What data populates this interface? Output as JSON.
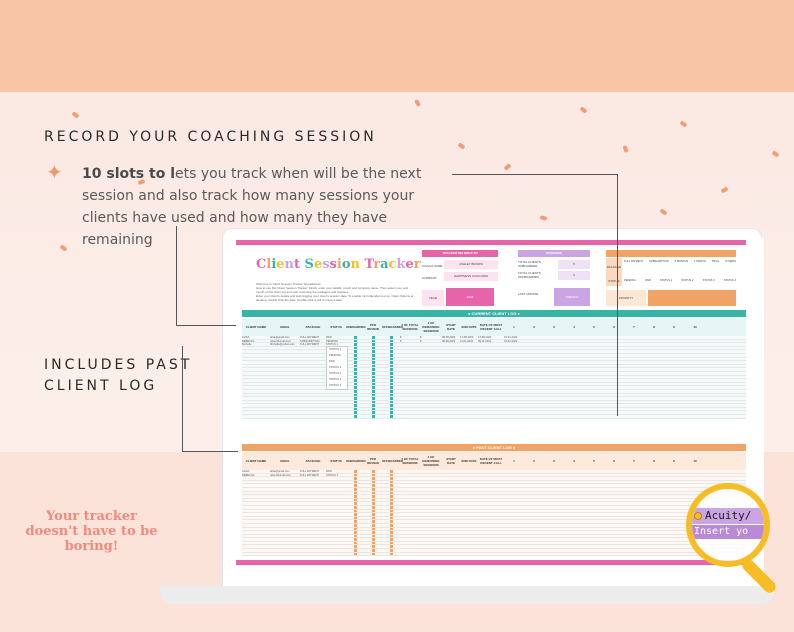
{
  "marketing": {
    "heading1": "RECORD YOUR COACHING SESSION",
    "desc_bold1": "10 slots to l",
    "desc_rest": "ets you track when will be the next session and also track how many sessions your clients have used and how many they have remaining",
    "heading2_line1": "INCLUDES PAST",
    "heading2_line2": "CLIENT LOG",
    "tagline": "Your tracker doesn't have to be boring!"
  },
  "sheet": {
    "title": "Client Session Tracker",
    "welcome": "Welcome to Client Session Tracker Spreadsheet",
    "instructions": [
      "How to use this Client Session Tracker: Firstly, enter your details, coach and company name. Then select your end month of this client log and start recording the packages and statuses.",
      "Enter your client's details and start logging your client's session date. To enable mini calendar pop up, Open Options or desktop, double click the date, Double click a cell to insert a date."
    ],
    "tracker_belongs_to_label": "TRACKER BELONGS TO",
    "coach_name_label": "COACH NAME",
    "coach_name": "ASHLEY BROWN",
    "company_label": "COMPANY",
    "company": "HAPPINESS COACHING",
    "year_label": "YEAR",
    "year": "2022",
    "overview_label": "OVERVIEW",
    "total_clients_label": "TOTAL CLIENTS ONBOARDED",
    "total_clients": "5",
    "total_offboarded_label": "TOTAL CLIENTS OFFBOARDED",
    "total_offboarded": "3",
    "last_update_label": "LAST UPDATE",
    "last_update": "1/26/2022",
    "package_label": "PACKAGE",
    "status_label": "STATUS",
    "priority_label": "PRIORITY",
    "package_options": [
      "FULL PAYMENT",
      "SUBSCRIPTION",
      "5 MONTHS",
      "1 MONTH",
      "TRIAL",
      "OTHERS"
    ],
    "status_options": [
      "PENDING",
      "PAID",
      "STATUS 1",
      "STATUS 2",
      "STATUS 3",
      "STATUS 4"
    ],
    "current_log_title": "CURRENT CLIENT LOG",
    "past_log_title": "PAST CLIENT LOG",
    "columns": [
      "CLIENT NAME",
      "EMAIL",
      "PACKAGE",
      "STATUS",
      "ONBOARDED",
      "PCD REVIEW",
      "OFFBOARDED",
      "# OF TOTAL SESSIONS",
      "# OF REMAINING SESSIONS",
      "START DATE",
      "END DATE",
      "DATE OF MOST RECENT CALL",
      "1",
      "2",
      "3",
      "4",
      "5",
      "6",
      "7",
      "8",
      "9",
      "10"
    ],
    "current_rows": [
      [
        "ALISA",
        "alisa@gmail.com",
        "FULL PAYMENT",
        "PAID",
        "",
        "",
        "",
        "8",
        "8",
        "08-08-2022",
        "17-08-2022",
        "17-08-2022",
        "01-01-2022"
      ],
      [
        "REBECCA",
        "rebec@gmail.com",
        "SUBSCRIPTION",
        "PENDING",
        "",
        "",
        "",
        "8",
        "8",
        "08-08-2022",
        "11-01-2022",
        "09-11-2022",
        "01-02-2022"
      ],
      [
        "Michelle",
        "Michelle@yahoo.com",
        "FULL PAYMENT",
        "STATUS 1",
        "",
        "",
        "",
        "",
        "",
        "",
        "",
        "",
        ""
      ]
    ],
    "status_dropdown": [
      "STATUS 2",
      "PENDING",
      "PAID",
      "STATUS 1",
      "STATUS 2",
      "STATUS 3",
      "STATUS 4"
    ],
    "past_rows": [
      [
        "ALISA",
        "alisa@gmail.com",
        "FULL PAYMENT",
        "PAID"
      ],
      [
        "REBECCA",
        "rebec@gmail.com",
        "FULL PAYMENT",
        "STATUS 1"
      ]
    ]
  },
  "magnifier": {
    "chip1": "Acuity/",
    "chip2": "Insert yo"
  },
  "colors": {
    "pink": "#e665a8",
    "teal": "#39b3a6",
    "orange": "#f1a366",
    "lavender": "#cba4e4",
    "gold": "#f6bd27"
  }
}
